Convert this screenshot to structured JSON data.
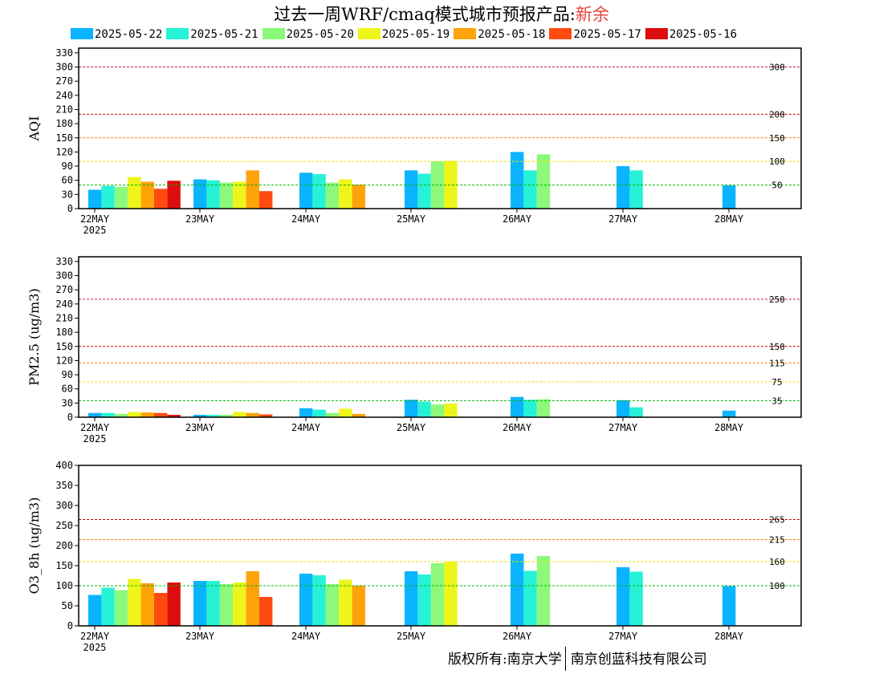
{
  "title": {
    "prefix": "过去一周WRF/cmaq模式城市预报产品:",
    "city": "新余",
    "city_color": "#e8413c"
  },
  "legend": [
    {
      "label": "2025-05-22",
      "color": "#0bb4ff"
    },
    {
      "label": "2025-05-21",
      "color": "#26f2d6"
    },
    {
      "label": "2025-05-20",
      "color": "#8cf97a"
    },
    {
      "label": "2025-05-19",
      "color": "#eef51a"
    },
    {
      "label": "2025-05-18",
      "color": "#ffa30a"
    },
    {
      "label": "2025-05-17",
      "color": "#ff4b0f"
    },
    {
      "label": "2025-05-16",
      "color": "#dd0d0d"
    }
  ],
  "x_ticks": [
    "22MAY",
    "23MAY",
    "24MAY",
    "25MAY",
    "26MAY",
    "27MAY",
    "28MAY"
  ],
  "x_year": "2025",
  "chart_data": [
    {
      "type": "bar",
      "ylabel": "AQI",
      "ylim": [
        0,
        340
      ],
      "yticks": [
        0,
        30,
        60,
        90,
        120,
        150,
        180,
        210,
        240,
        270,
        300,
        330
      ],
      "thresholds": [
        {
          "value": 300,
          "label": "300",
          "color": "#c0145a"
        },
        {
          "value": 200,
          "label": "200",
          "color": "#cc0000"
        },
        {
          "value": 150,
          "label": "150",
          "color": "#ff7f00"
        },
        {
          "value": 100,
          "label": "100",
          "color": "#f2e000"
        },
        {
          "value": 50,
          "label": "50",
          "color": "#00bb00"
        }
      ],
      "categories": [
        "22MAY",
        "23MAY",
        "24MAY",
        "25MAY",
        "26MAY",
        "27MAY",
        "28MAY"
      ],
      "series": [
        {
          "name": "2025-05-22",
          "values": [
            40,
            62,
            76,
            81,
            120,
            90,
            49
          ]
        },
        {
          "name": "2025-05-21",
          "values": [
            48,
            60,
            73,
            74,
            81,
            81,
            null
          ]
        },
        {
          "name": "2025-05-20",
          "values": [
            46,
            55,
            55,
            100,
            115,
            null,
            null
          ]
        },
        {
          "name": "2025-05-19",
          "values": [
            67,
            57,
            62,
            101,
            null,
            null,
            null
          ]
        },
        {
          "name": "2025-05-18",
          "values": [
            57,
            81,
            51,
            null,
            null,
            null,
            null
          ]
        },
        {
          "name": "2025-05-17",
          "values": [
            42,
            37,
            null,
            null,
            null,
            null,
            null
          ]
        },
        {
          "name": "2025-05-16",
          "values": [
            59,
            null,
            null,
            null,
            null,
            null,
            null
          ]
        }
      ]
    },
    {
      "type": "bar",
      "ylabel": "PM2.5 (ug/m3)",
      "ylim": [
        0,
        340
      ],
      "yticks": [
        0,
        30,
        60,
        90,
        120,
        150,
        180,
        210,
        240,
        270,
        300,
        330
      ],
      "thresholds": [
        {
          "value": 250,
          "label": "250",
          "color": "#c0145a"
        },
        {
          "value": 150,
          "label": "150",
          "color": "#cc0000"
        },
        {
          "value": 115,
          "label": "115",
          "color": "#ff7f00"
        },
        {
          "value": 75,
          "label": "75",
          "color": "#f2e000"
        },
        {
          "value": 35,
          "label": "35",
          "color": "#00bb00"
        }
      ],
      "categories": [
        "22MAY",
        "23MAY",
        "24MAY",
        "25MAY",
        "26MAY",
        "27MAY",
        "28MAY"
      ],
      "series": [
        {
          "name": "2025-05-22",
          "values": [
            9,
            5,
            19,
            37,
            43,
            36,
            14
          ]
        },
        {
          "name": "2025-05-21",
          "values": [
            9,
            5,
            16,
            33,
            37,
            21,
            null
          ]
        },
        {
          "name": "2025-05-20",
          "values": [
            7,
            5,
            9,
            27,
            38,
            null,
            null
          ]
        },
        {
          "name": "2025-05-19",
          "values": [
            11,
            11,
            18,
            29,
            null,
            null,
            null
          ]
        },
        {
          "name": "2025-05-18",
          "values": [
            10,
            9,
            7,
            null,
            null,
            null,
            null
          ]
        },
        {
          "name": "2025-05-17",
          "values": [
            9,
            6,
            null,
            null,
            null,
            null,
            null
          ]
        },
        {
          "name": "2025-05-16",
          "values": [
            5,
            null,
            null,
            null,
            null,
            null,
            null
          ]
        }
      ]
    },
    {
      "type": "bar",
      "ylabel": "O3_8h (ug/m3)",
      "ylim": [
        0,
        400
      ],
      "yticks": [
        0,
        50,
        100,
        150,
        200,
        250,
        300,
        350,
        400
      ],
      "thresholds": [
        {
          "value": 265,
          "label": "265",
          "color": "#cc0000"
        },
        {
          "value": 215,
          "label": "215",
          "color": "#ff7f00"
        },
        {
          "value": 160,
          "label": "160",
          "color": "#f2e000"
        },
        {
          "value": 100,
          "label": "100",
          "color": "#00bb00"
        }
      ],
      "categories": [
        "22MAY",
        "23MAY",
        "24MAY",
        "25MAY",
        "26MAY",
        "27MAY",
        "28MAY"
      ],
      "series": [
        {
          "name": "2025-05-22",
          "values": [
            77,
            112,
            130,
            136,
            180,
            146,
            99
          ]
        },
        {
          "name": "2025-05-21",
          "values": [
            95,
            112,
            126,
            128,
            137,
            135,
            null
          ]
        },
        {
          "name": "2025-05-20",
          "values": [
            89,
            104,
            104,
            156,
            174,
            null,
            null
          ]
        },
        {
          "name": "2025-05-19",
          "values": [
            117,
            108,
            115,
            160,
            null,
            null,
            null
          ]
        },
        {
          "name": "2025-05-18",
          "values": [
            106,
            136,
            100,
            null,
            null,
            null,
            null
          ]
        },
        {
          "name": "2025-05-17",
          "values": [
            82,
            72,
            null,
            null,
            null,
            null,
            null
          ]
        },
        {
          "name": "2025-05-16",
          "values": [
            108,
            null,
            null,
            null,
            null,
            null,
            null
          ]
        }
      ]
    }
  ],
  "footer": {
    "left": "版权所有:南京大学",
    "right": "南京创蓝科技有限公司"
  }
}
